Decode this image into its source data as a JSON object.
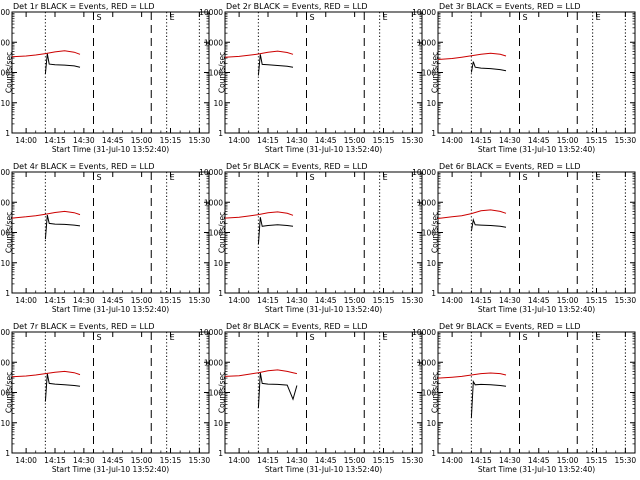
{
  "chart_data": {
    "type": "line",
    "layout": "3x3 grid",
    "y_scale": "log",
    "ylim": [
      1,
      10000
    ],
    "ytick_labels": [
      "1",
      "10",
      "100",
      "1000",
      "10000"
    ],
    "ylabel": "Counts/sec",
    "xlabel": "Start Time (31-Jul-10 13:52:40)",
    "xtick_labels": [
      "14:00",
      "14:15",
      "14:30",
      "14:45",
      "15:00",
      "15:15",
      "15:30"
    ],
    "xlim": [
      "13:52:40",
      "15:35:00"
    ],
    "colors": {
      "events": "#000000",
      "lld": "#cc0000",
      "axes": "#000000",
      "background": "#ffffff"
    },
    "markers": [
      {
        "time": "14:10",
        "style": "dotted",
        "label": ""
      },
      {
        "time": "14:35",
        "style": "dashed",
        "label": "S"
      },
      {
        "time": "15:05",
        "style": "dashed",
        "label": ""
      },
      {
        "time": "15:13",
        "style": "dotted",
        "label": "E"
      },
      {
        "time": "15:30",
        "style": "dotted",
        "label": ""
      }
    ],
    "panels": [
      {
        "title": "Det 1r BLACK = Events, RED = LLD",
        "series": [
          {
            "name": "Events",
            "color": "#000000",
            "x": [
              "14:10",
              "14:11",
              "14:12",
              "14:15",
              "14:20",
              "14:25",
              "14:28"
            ],
            "y": [
              90,
              420,
              190,
              180,
              175,
              165,
              150
            ]
          },
          {
            "name": "LLD",
            "color": "#cc0000",
            "x": [
              "13:52:40",
              "14:00",
              "14:05",
              "14:10",
              "14:15",
              "14:20",
              "14:25",
              "14:28"
            ],
            "y": [
              330,
              350,
              380,
              420,
              480,
              520,
              470,
              400
            ]
          }
        ]
      },
      {
        "title": "Det 2r BLACK = Events, RED = LLD",
        "series": [
          {
            "name": "Events",
            "color": "#000000",
            "x": [
              "14:10",
              "14:11",
              "14:12",
              "14:15",
              "14:20",
              "14:25",
              "14:28"
            ],
            "y": [
              80,
              400,
              185,
              180,
              170,
              160,
              150
            ]
          },
          {
            "name": "LLD",
            "color": "#cc0000",
            "x": [
              "13:52:40",
              "14:00",
              "14:05",
              "14:10",
              "14:15",
              "14:20",
              "14:25",
              "14:28"
            ],
            "y": [
              320,
              340,
              370,
              410,
              470,
              510,
              460,
              400
            ]
          }
        ]
      },
      {
        "title": "Det 3r BLACK = Events, RED = LLD",
        "series": [
          {
            "name": "Events",
            "color": "#000000",
            "x": [
              "14:10",
              "14:11",
              "14:12",
              "14:15",
              "14:20",
              "14:25",
              "14:28"
            ],
            "y": [
              100,
              230,
              150,
              140,
              135,
              125,
              115
            ]
          },
          {
            "name": "LLD",
            "color": "#cc0000",
            "x": [
              "13:52:40",
              "14:00",
              "14:05",
              "14:10",
              "14:15",
              "14:20",
              "14:25",
              "14:28"
            ],
            "y": [
              270,
              290,
              320,
              360,
              400,
              430,
              400,
              350
            ]
          }
        ]
      },
      {
        "title": "Det 4r BLACK = Events, RED = LLD",
        "series": [
          {
            "name": "Events",
            "color": "#000000",
            "x": [
              "14:10",
              "14:11",
              "14:12",
              "14:15",
              "14:20",
              "14:25",
              "14:28"
            ],
            "y": [
              60,
              380,
              200,
              190,
              185,
              175,
              165
            ]
          },
          {
            "name": "LLD",
            "color": "#cc0000",
            "x": [
              "13:52:40",
              "14:00",
              "14:05",
              "14:10",
              "14:15",
              "14:20",
              "14:25",
              "14:28"
            ],
            "y": [
              300,
              330,
              360,
              400,
              460,
              500,
              450,
              390
            ]
          }
        ]
      },
      {
        "title": "Det 5r BLACK = Events, RED = LLD",
        "series": [
          {
            "name": "Events",
            "color": "#000000",
            "x": [
              "14:10",
              "14:11",
              "14:12",
              "14:15",
              "14:20",
              "14:25",
              "14:28"
            ],
            "y": [
              40,
              320,
              160,
              170,
              180,
              170,
              160
            ]
          },
          {
            "name": "LLD",
            "color": "#cc0000",
            "x": [
              "13:52:40",
              "14:00",
              "14:05",
              "14:10",
              "14:15",
              "14:20",
              "14:25",
              "14:28"
            ],
            "y": [
              300,
              320,
              350,
              390,
              450,
              480,
              430,
              370
            ]
          }
        ]
      },
      {
        "title": "Det 6r BLACK = Events, RED = LLD",
        "series": [
          {
            "name": "Events",
            "color": "#000000",
            "x": [
              "14:10",
              "14:11",
              "14:12",
              "14:15",
              "14:20",
              "14:25",
              "14:28"
            ],
            "y": [
              110,
              260,
              180,
              175,
              170,
              160,
              150
            ]
          },
          {
            "name": "LLD",
            "color": "#cc0000",
            "x": [
              "13:52:40",
              "14:00",
              "14:05",
              "14:10",
              "14:15",
              "14:20",
              "14:25",
              "14:28"
            ],
            "y": [
              290,
              330,
              360,
              420,
              520,
              560,
              500,
              430
            ]
          }
        ]
      },
      {
        "title": "Det 7r BLACK = Events, RED = LLD",
        "series": [
          {
            "name": "Events",
            "color": "#000000",
            "x": [
              "14:10",
              "14:11",
              "14:12",
              "14:15",
              "14:20",
              "14:25",
              "14:28"
            ],
            "y": [
              50,
              420,
              200,
              190,
              180,
              170,
              160
            ]
          },
          {
            "name": "LLD",
            "color": "#cc0000",
            "x": [
              "13:52:40",
              "14:00",
              "14:05",
              "14:10",
              "14:15",
              "14:20",
              "14:25",
              "14:28"
            ],
            "y": [
              330,
              350,
              380,
              420,
              470,
              500,
              450,
              390
            ]
          }
        ]
      },
      {
        "title": "Det 8r BLACK = Events, RED = LLD",
        "series": [
          {
            "name": "Events",
            "color": "#000000",
            "x": [
              "14:10",
              "14:11",
              "14:12",
              "14:15",
              "14:20",
              "14:25",
              "14:28",
              "14:30"
            ],
            "y": [
              30,
              450,
              200,
              190,
              185,
              175,
              60,
              170
            ]
          },
          {
            "name": "LLD",
            "color": "#cc0000",
            "x": [
              "13:52:40",
              "14:00",
              "14:05",
              "14:10",
              "14:15",
              "14:20",
              "14:25",
              "14:28",
              "14:30"
            ],
            "y": [
              340,
              360,
              400,
              450,
              520,
              560,
              500,
              450,
              420
            ]
          }
        ]
      },
      {
        "title": "Det 9r BLACK = Events, RED = LLD",
        "series": [
          {
            "name": "Events",
            "color": "#000000",
            "x": [
              "14:10",
              "14:11",
              "14:12",
              "14:15",
              "14:20",
              "14:25",
              "14:28"
            ],
            "y": [
              15,
              230,
              180,
              185,
              180,
              170,
              160
            ]
          },
          {
            "name": "LLD",
            "color": "#cc0000",
            "x": [
              "13:52:40",
              "14:00",
              "14:05",
              "14:10",
              "14:15",
              "14:20",
              "14:25",
              "14:28"
            ],
            "y": [
              300,
              320,
              340,
              380,
              420,
              440,
              420,
              380
            ]
          }
        ]
      }
    ]
  }
}
